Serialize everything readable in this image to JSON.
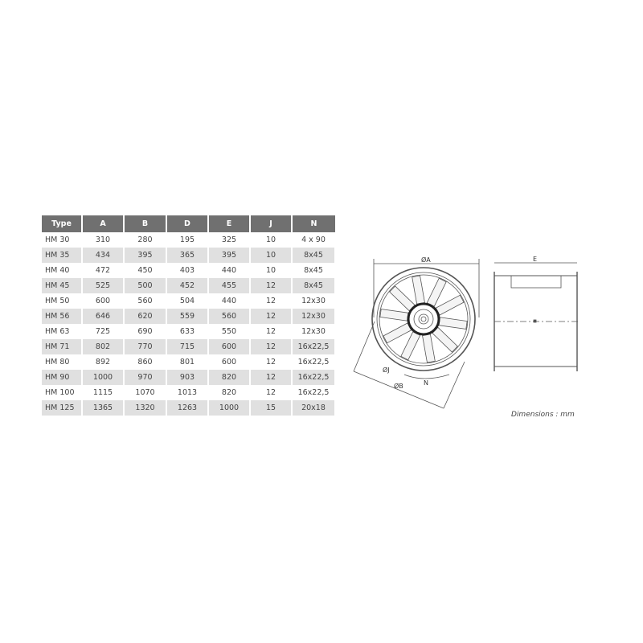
{
  "table": {
    "headers": [
      "Type",
      "A",
      "B",
      "D",
      "E",
      "J",
      "N"
    ],
    "rows": [
      [
        "HM 30",
        "310",
        "280",
        "195",
        "325",
        "10",
        "4 x 90"
      ],
      [
        "HM 35",
        "434",
        "395",
        "365",
        "395",
        "10",
        "8x45"
      ],
      [
        "HM 40",
        "472",
        "450",
        "403",
        "440",
        "10",
        "8x45"
      ],
      [
        "HM 45",
        "525",
        "500",
        "452",
        "455",
        "12",
        "8x45"
      ],
      [
        "HM 50",
        "600",
        "560",
        "504",
        "440",
        "12",
        "12x30"
      ],
      [
        "HM 56",
        "646",
        "620",
        "559",
        "560",
        "12",
        "12x30"
      ],
      [
        "HM 63",
        "725",
        "690",
        "633",
        "550",
        "12",
        "12x30"
      ],
      [
        "HM 71",
        "802",
        "770",
        "715",
        "600",
        "12",
        "16x22,5"
      ],
      [
        "HM 80",
        "892",
        "860",
        "801",
        "600",
        "12",
        "16x22,5"
      ],
      [
        "HM 90",
        "1000",
        "970",
        "903",
        "820",
        "12",
        "16x22,5"
      ],
      [
        "HM 100",
        "1115",
        "1070",
        "1013",
        "820",
        "12",
        "16x22,5"
      ],
      [
        "HM 125",
        "1365",
        "1320",
        "1263",
        "1000",
        "15",
        "20x18"
      ]
    ]
  },
  "drawing": {
    "label_a": "ØA",
    "label_b": "ØB",
    "label_j": "ØJ",
    "label_n": "N",
    "label_e": "E",
    "units": "Dimensions : mm"
  }
}
